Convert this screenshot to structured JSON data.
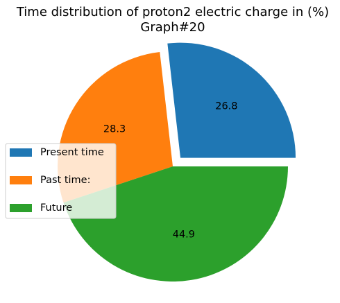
{
  "chart_data": {
    "type": "pie",
    "title": "Time distribution of proton2 electric charge in (%)",
    "subtitle": "Graph#20",
    "categories": [
      "Present time",
      "Past time:",
      "Future"
    ],
    "values": [
      26.8,
      28.3,
      44.9
    ],
    "value_labels": [
      "26.8",
      "28.3",
      "44.9"
    ],
    "colors": [
      "#1f77b4",
      "#ff7f0e",
      "#2ca02c"
    ],
    "explode": [
      0.1,
      0,
      0
    ],
    "start_angle_deg": 0,
    "direction": "counterclockwise",
    "legend_placement": "center-left"
  }
}
